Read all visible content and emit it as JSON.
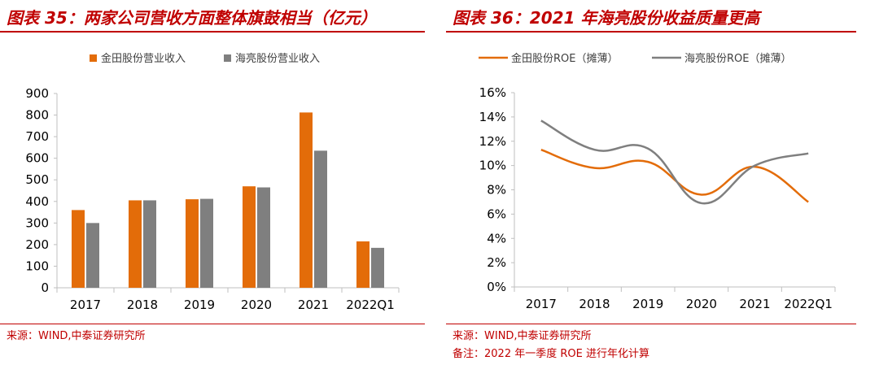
{
  "colors": {
    "accent": "#c00000",
    "orange": "#e36c09",
    "gray": "#7f7f7f",
    "axis": "#bfbfbf",
    "text": "#000000"
  },
  "left_panel": {
    "title": "图表 35：两家公司营收方面整体旗鼓相当（亿元）",
    "source": "来源：WIND,中泰证券研究所"
  },
  "right_panel": {
    "title": "图表 36：2021 年海亮股份收益质量更高",
    "source": "来源：WIND,中泰证券研究所",
    "note": "备注：2022 年一季度 ROE 进行年化计算"
  },
  "chart_data": [
    {
      "type": "bar",
      "title": "两家公司营收方面整体旗鼓相当（亿元）",
      "categories": [
        "2017",
        "2018",
        "2019",
        "2020",
        "2021",
        "2022Q1"
      ],
      "series": [
        {
          "name": "金田股份营业收入",
          "color": "#e36c09",
          "values": [
            360,
            405,
            410,
            470,
            812,
            215
          ]
        },
        {
          "name": "海亮股份营业收入",
          "color": "#7f7f7f",
          "values": [
            300,
            405,
            412,
            465,
            635,
            185
          ]
        }
      ],
      "yticks": [
        "0",
        "100",
        "200",
        "300",
        "400",
        "500",
        "600",
        "700",
        "800",
        "900"
      ],
      "ylim": [
        0,
        900
      ],
      "legend": "top"
    },
    {
      "type": "line",
      "title": "2021 年海亮股份收益质量更高",
      "categories": [
        "2017",
        "2018",
        "2019",
        "2020",
        "2021",
        "2022Q1"
      ],
      "series": [
        {
          "name": "金田股份ROE（摊薄）",
          "color": "#e36c09",
          "values": [
            11.3,
            9.8,
            10.3,
            7.6,
            9.9,
            7.0
          ]
        },
        {
          "name": "海亮股份ROE（摊薄）",
          "color": "#7f7f7f",
          "values": [
            13.7,
            11.3,
            11.4,
            6.9,
            10.0,
            11.0
          ]
        }
      ],
      "yticks": [
        "0%",
        "2%",
        "4%",
        "6%",
        "8%",
        "10%",
        "12%",
        "14%",
        "16%"
      ],
      "ylim": [
        0,
        16
      ],
      "legend": "top"
    }
  ]
}
